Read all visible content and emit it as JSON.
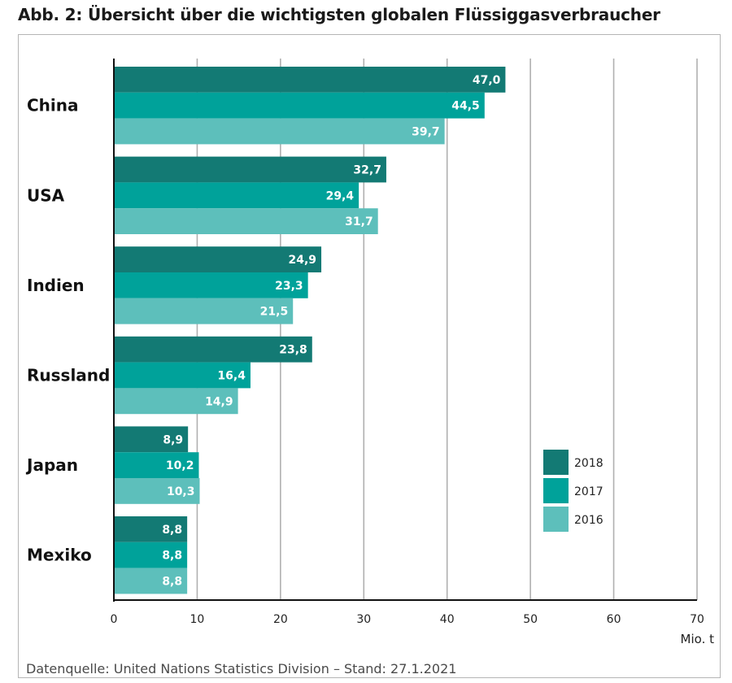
{
  "chart_data": {
    "type": "bar",
    "orientation": "horizontal",
    "title": "Abb. 2: Übersicht über die wichtigsten globalen Flüssiggasverbraucher",
    "source": "Datenquelle: United Nations Statistics Division – Stand: 27.1.2021",
    "unit": "Mio. t",
    "categories": [
      "China",
      "USA",
      "Indien",
      "Russland",
      "Japan",
      "Mexiko"
    ],
    "series": [
      {
        "name": "2018",
        "color": "#137a74",
        "values": [
          47.0,
          32.7,
          24.9,
          23.8,
          8.9,
          8.8
        ]
      },
      {
        "name": "2017",
        "color": "#00a29a",
        "values": [
          44.5,
          29.4,
          23.3,
          16.4,
          10.2,
          8.8
        ]
      },
      {
        "name": "2016",
        "color": "#5dbfbb",
        "values": [
          39.7,
          31.7,
          21.5,
          14.9,
          10.3,
          8.8
        ]
      }
    ],
    "value_labels": [
      [
        "47,0",
        "32,7",
        "24,9",
        "23,8",
        "8,9",
        "8,8"
      ],
      [
        "44,5",
        "29,4",
        "23,3",
        "16,4",
        "10,2",
        "8,8"
      ],
      [
        "39,7",
        "31,7",
        "21,5",
        "14,9",
        "10,3",
        "8,8"
      ]
    ],
    "xlim": [
      0,
      70
    ],
    "xticks": [
      0,
      10,
      20,
      30,
      40,
      50,
      60,
      70
    ],
    "xtick_labels": [
      "0",
      "10",
      "20",
      "30",
      "40",
      "50",
      "60",
      "70"
    ],
    "grid": true,
    "legend_position": "right"
  }
}
